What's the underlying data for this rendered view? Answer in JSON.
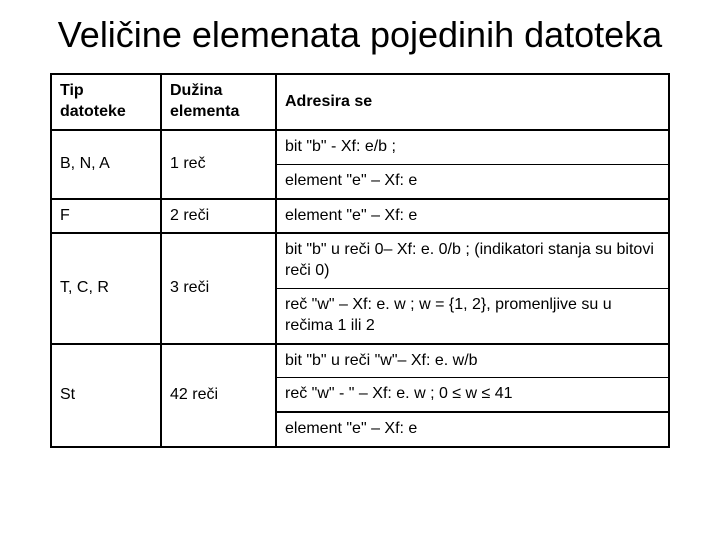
{
  "title": "Veličine elemenata pojedinih datoteka",
  "table": {
    "headers": {
      "col1": "Tip datoteke",
      "col2": "Dužina elementa",
      "col3": "Adresira se"
    },
    "rows": {
      "r1": {
        "type": "B,  N, A",
        "len": "1 reč",
        "addr1": "bit \"b\" - Xf: e/b ;",
        "addr2": "element \"e\" – Xf: e"
      },
      "r2": {
        "type": "F",
        "len": "2 reči",
        "addr": "element \"e\" – Xf: e"
      },
      "r3": {
        "type": "T, C, R",
        "len": "3 reči",
        "addr1": "bit \"b\" u reči 0– Xf: e. 0/b ;  (indikatori stanja  su bitovi reči 0)",
        "addr2": "reč \"w\" – Xf: e. w  ; w = {1, 2}, promenljive su u rečima 1 ili 2"
      },
      "r4": {
        "type": "St",
        "len": "42 reči",
        "addr1": "bit \"b\" u reči \"w\"– Xf: e. w/b",
        "addr2": "reč \"w\" - \" – Xf: e. w ;  0 ≤ w ≤ 41",
        "addr3": "element \"e\"  – Xf: e"
      }
    }
  }
}
